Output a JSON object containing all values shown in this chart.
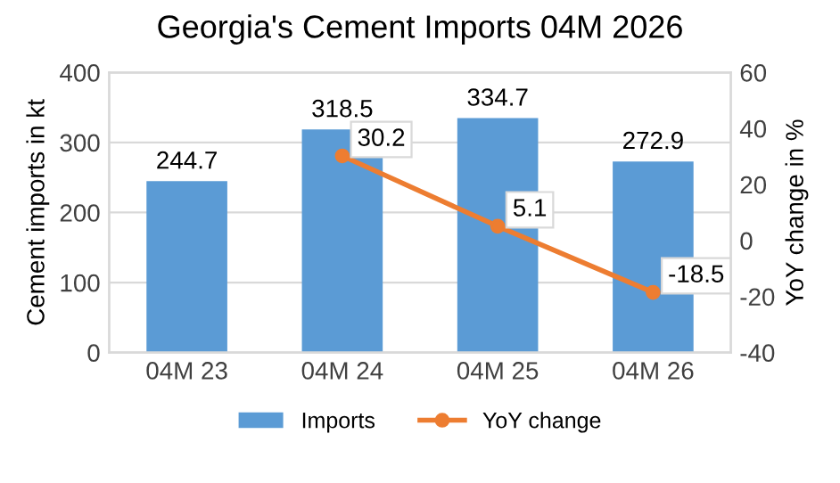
{
  "chart_data": {
    "type": "bar",
    "title": "Georgia's Cement Imports 04M 2026",
    "ylabel": "Cement imports in kt",
    "y2label": "YoY change in %",
    "categories": [
      "04M 23",
      "04M 24",
      "04M 25",
      "04M 26"
    ],
    "series": [
      {
        "name": "Imports",
        "color": "#5b9bd5",
        "values": [
          244.7,
          318.5,
          334.7,
          272.9
        ]
      },
      {
        "name": "YoY change",
        "type": "line",
        "axis": "y2",
        "color": "#ed7d31",
        "marker": "circle",
        "values": [
          null,
          30.2,
          5.1,
          -18.5
        ]
      }
    ],
    "ylim": [
      0,
      400
    ],
    "yticks": [
      0,
      100,
      200,
      300,
      400
    ],
    "y2lim": [
      -40,
      60
    ],
    "y2ticks": [
      -40,
      -20,
      0,
      20,
      40,
      60
    ],
    "grid": "y",
    "legend": "bottom",
    "data_labels": true
  }
}
